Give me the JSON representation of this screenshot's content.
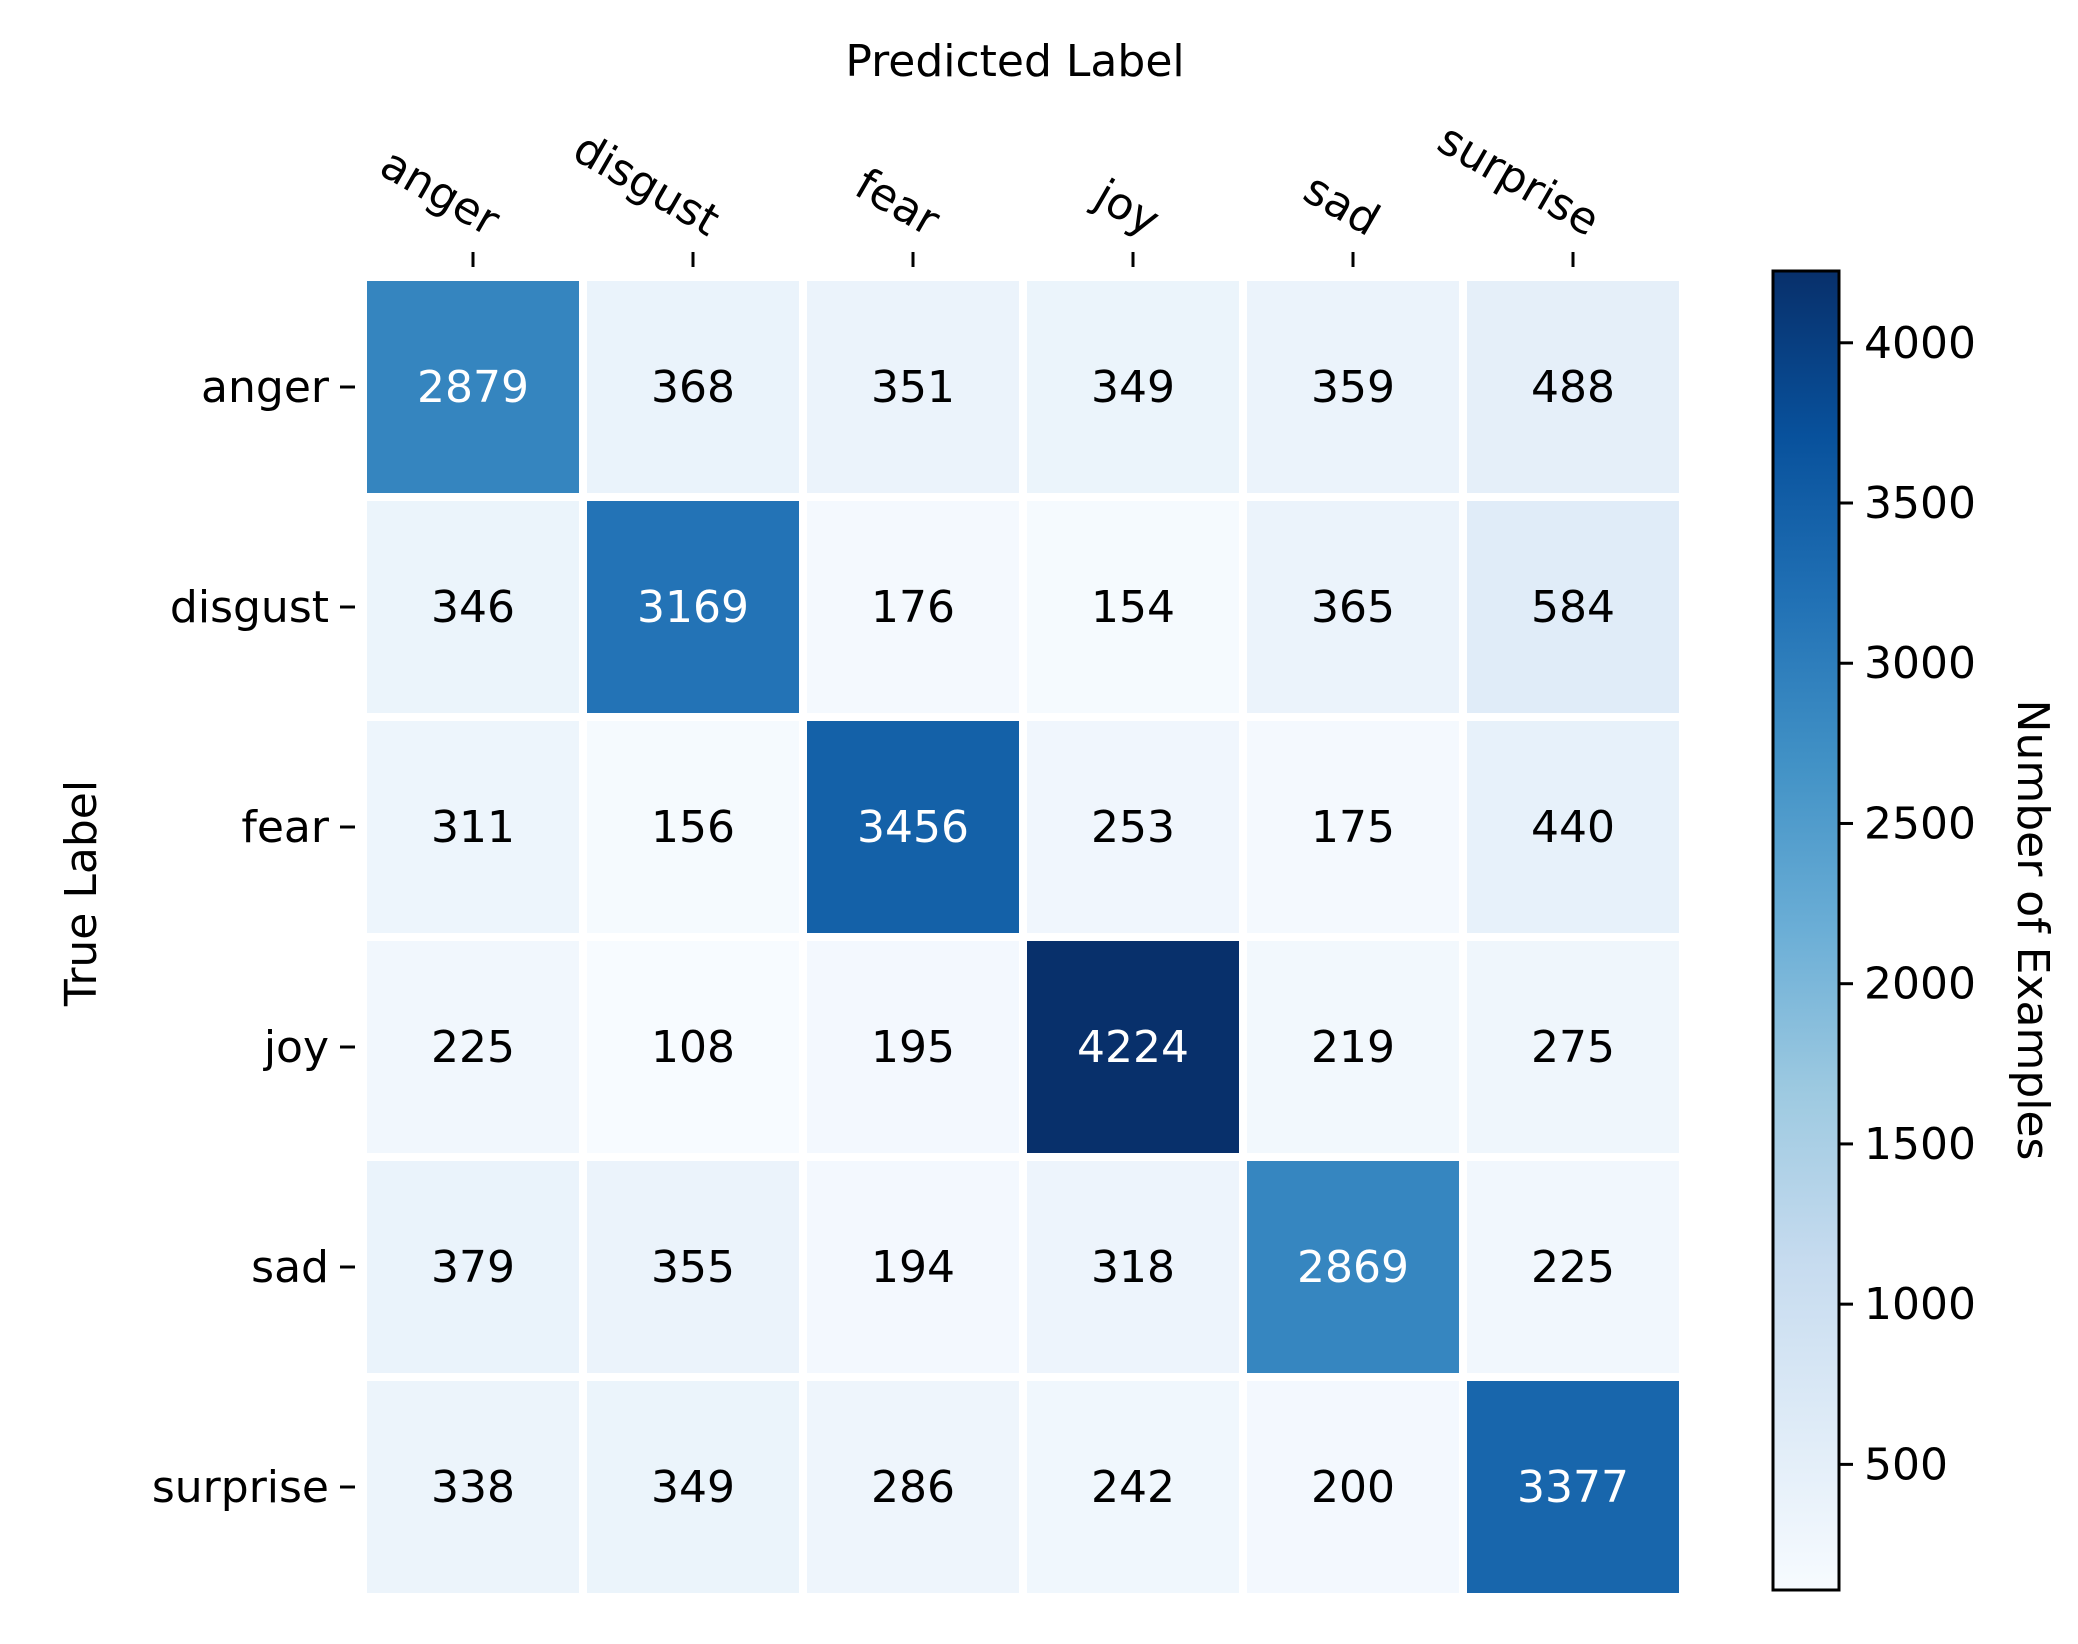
{
  "chart_data": {
    "type": "heatmap",
    "xlabel": "Predicted Label",
    "ylabel": "True Label",
    "x_categories": [
      "anger",
      "disgust",
      "fear",
      "joy",
      "sad",
      "surprise"
    ],
    "y_categories": [
      "anger",
      "disgust",
      "fear",
      "joy",
      "sad",
      "surprise"
    ],
    "values": [
      [
        2879,
        368,
        351,
        349,
        359,
        488
      ],
      [
        346,
        3169,
        176,
        154,
        365,
        584
      ],
      [
        311,
        156,
        3456,
        253,
        175,
        440
      ],
      [
        225,
        108,
        195,
        4224,
        219,
        275
      ],
      [
        379,
        355,
        194,
        318,
        2869,
        225
      ],
      [
        338,
        349,
        286,
        242,
        200,
        3377
      ]
    ],
    "colorbar": {
      "label": "Number of Examples",
      "min": 108,
      "max": 4224,
      "ticks": [
        500,
        1000,
        1500,
        2000,
        2500,
        3000,
        3500,
        4000
      ],
      "colormap": "Blues",
      "colors": [
        "#f7fbff",
        "#deebf7",
        "#c6dbef",
        "#9ecae1",
        "#6baed6",
        "#4292c6",
        "#2171b5",
        "#08519c",
        "#08306b"
      ]
    },
    "x_axis_position": "top",
    "legend": "colorbar-right"
  }
}
